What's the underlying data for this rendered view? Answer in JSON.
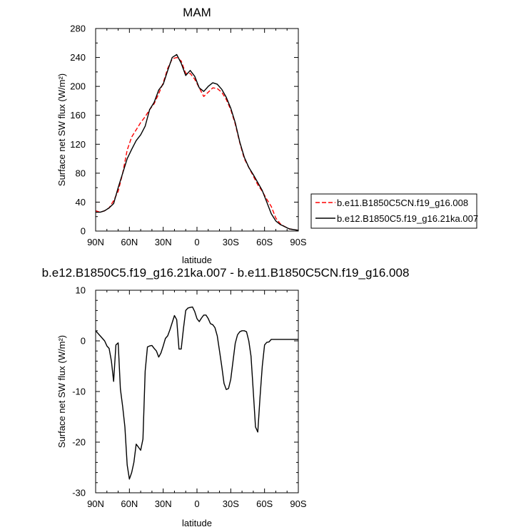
{
  "chart_data": [
    {
      "type": "line",
      "title": "MAM",
      "xlabel": "latitude",
      "ylabel": "Surface net SW flux (W/m²)",
      "xlim": [
        90,
        -90
      ],
      "ylim": [
        0,
        280
      ],
      "xticks": [
        {
          "value": 90,
          "label": "90N"
        },
        {
          "value": 60,
          "label": "60N"
        },
        {
          "value": 30,
          "label": "30N"
        },
        {
          "value": 0,
          "label": "0"
        },
        {
          "value": -30,
          "label": "30S"
        },
        {
          "value": -60,
          "label": "60S"
        },
        {
          "value": -90,
          "label": "90S"
        }
      ],
      "yticks": [
        0,
        40,
        80,
        120,
        160,
        200,
        240,
        280
      ],
      "legend_position": "right",
      "x": [
        90,
        86,
        82,
        78,
        74,
        70,
        66,
        62,
        58,
        54,
        50,
        46,
        42,
        38,
        34,
        30,
        26,
        22,
        18,
        14,
        10,
        6,
        2,
        -2,
        -6,
        -10,
        -14,
        -18,
        -22,
        -26,
        -30,
        -34,
        -38,
        -42,
        -46,
        -50,
        -54,
        -58,
        -62,
        -66,
        -70,
        -74,
        -78,
        -82,
        -86,
        -90
      ],
      "series": [
        {
          "name": "b.e11.B1850C5CN.f19_g16.008",
          "color": "#ff0000",
          "dash": "dashed",
          "values": [
            28,
            26,
            28,
            32,
            42,
            55,
            80,
            112,
            130,
            140,
            150,
            158,
            168,
            176,
            190,
            205,
            225,
            238,
            240,
            235,
            218,
            218,
            210,
            198,
            186,
            192,
            198,
            197,
            192,
            182,
            168,
            148,
            122,
            100,
            88,
            76,
            64,
            55,
            44,
            34,
            18,
            10,
            6,
            3,
            2,
            1
          ]
        },
        {
          "name": "b.e12.B1850C5.f19_g16.21ka.007",
          "color": "#000000",
          "dash": "solid",
          "values": [
            26,
            26,
            28,
            32,
            38,
            60,
            80,
            100,
            113,
            125,
            133,
            145,
            168,
            178,
            195,
            203,
            222,
            240,
            244,
            232,
            215,
            222,
            214,
            198,
            193,
            200,
            205,
            203,
            196,
            185,
            170,
            150,
            123,
            102,
            88,
            78,
            67,
            56,
            40,
            24,
            14,
            9,
            6,
            3,
            2,
            1
          ]
        }
      ]
    },
    {
      "type": "line",
      "title": "b.e12.B1850C5.f19_g16.21ka.007 - b.e11.B1850C5CN.f19_g16.008",
      "xlabel": "latitude",
      "ylabel": "Surface net SW flux (W/m²)",
      "xlim": [
        90,
        -90
      ],
      "ylim": [
        -30,
        10
      ],
      "xticks": [
        {
          "value": 90,
          "label": "90N"
        },
        {
          "value": 60,
          "label": "60N"
        },
        {
          "value": 30,
          "label": "30N"
        },
        {
          "value": 0,
          "label": "0"
        },
        {
          "value": -30,
          "label": "30S"
        },
        {
          "value": -60,
          "label": "60S"
        },
        {
          "value": -90,
          "label": "90S"
        }
      ],
      "yticks": [
        -30,
        -20,
        -10,
        0,
        10
      ],
      "x": [
        90,
        86,
        82,
        80,
        78,
        76,
        74,
        72,
        70,
        68,
        66,
        64,
        62,
        60,
        58,
        56,
        54,
        52,
        50,
        48,
        46,
        44,
        42,
        40,
        38,
        36,
        34,
        32,
        30,
        28,
        26,
        24,
        22,
        20,
        18,
        16,
        14,
        12,
        10,
        8,
        6,
        4,
        2,
        0,
        -2,
        -4,
        -6,
        -8,
        -10,
        -12,
        -14,
        -16,
        -18,
        -20,
        -22,
        -24,
        -26,
        -28,
        -30,
        -32,
        -34,
        -36,
        -38,
        -40,
        -42,
        -44,
        -46,
        -48,
        -50,
        -52,
        -54,
        -56,
        -58,
        -60,
        -62,
        -64,
        -66,
        -68,
        -70,
        -72,
        -74,
        -76,
        -78,
        -80,
        -82,
        -84,
        -86,
        -88,
        -90
      ],
      "series": [
        {
          "name": "",
          "color": "#000000",
          "values": [
            2,
            1,
            0,
            -1,
            -1.5,
            -4,
            -8,
            -0.8,
            -0.4,
            -9.5,
            -13,
            -17,
            -24.5,
            -27.3,
            -26,
            -24,
            -20.4,
            -21,
            -21.6,
            -19.4,
            -6,
            -1.2,
            -1,
            -0.9,
            -1.5,
            -2,
            -3.2,
            -2.4,
            -1,
            0.5,
            1,
            2.2,
            3.6,
            5,
            4.2,
            -1.6,
            -1.6,
            2.5,
            6,
            6.5,
            6.6,
            6.7,
            5.8,
            4.4,
            3.8,
            4.5,
            5.1,
            5.1,
            4.4,
            3.4,
            3.2,
            2.6,
            1,
            -2,
            -5,
            -8.4,
            -9.6,
            -9.4,
            -7.6,
            -4,
            -0.5,
            1.2,
            1.8,
            2,
            2,
            1.8,
            0,
            -3,
            -10,
            -17,
            -18,
            -11,
            -5,
            -0.8,
            -0.3,
            -0.2,
            0.3,
            0.3,
            0.3,
            0.3,
            0.3,
            0.3,
            0.3,
            0.3,
            0.3,
            0.3,
            0.3,
            0.3,
            0.3
          ]
        }
      ]
    }
  ]
}
